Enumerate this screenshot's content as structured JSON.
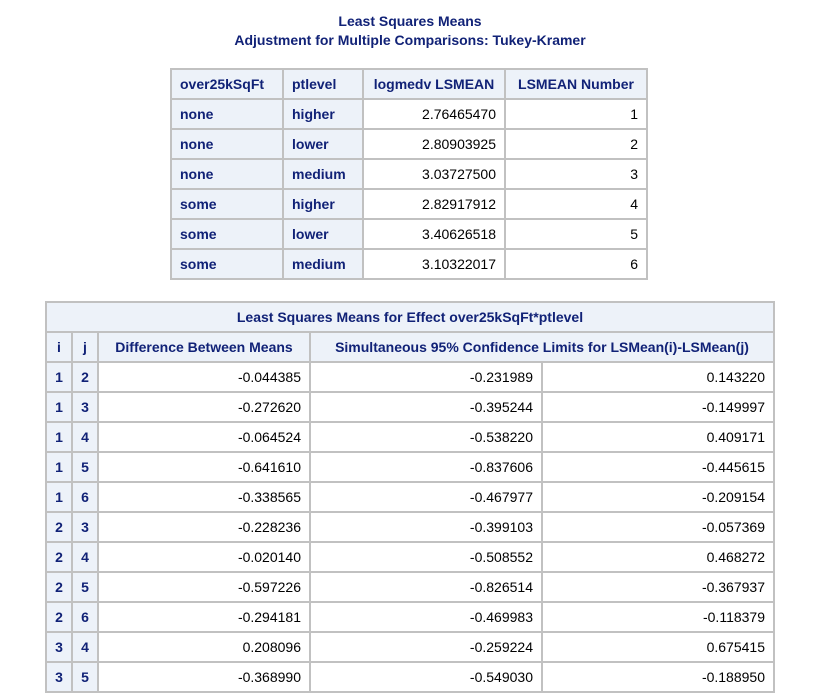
{
  "titles": {
    "line1": "Least Squares Means",
    "line2": "Adjustment for Multiple Comparisons: Tukey-Kramer"
  },
  "lsmeans": {
    "headers": [
      "over25kSqFt",
      "ptlevel",
      "logmedv LSMEAN",
      "LSMEAN Number"
    ],
    "rows": [
      {
        "over25k": "none",
        "ptlevel": "higher",
        "lsmean": "2.76465470",
        "number": "1"
      },
      {
        "over25k": "none",
        "ptlevel": "lower",
        "lsmean": "2.80903925",
        "number": "2"
      },
      {
        "over25k": "none",
        "ptlevel": "medium",
        "lsmean": "3.03727500",
        "number": "3"
      },
      {
        "over25k": "some",
        "ptlevel": "higher",
        "lsmean": "2.82917912",
        "number": "4"
      },
      {
        "over25k": "some",
        "ptlevel": "lower",
        "lsmean": "3.40626518",
        "number": "5"
      },
      {
        "over25k": "some",
        "ptlevel": "medium",
        "lsmean": "3.10322017",
        "number": "6"
      }
    ]
  },
  "differences": {
    "caption": "Least Squares Means for Effect over25kSqFt*ptlevel",
    "headers": {
      "i": "i",
      "j": "j",
      "diff": "Difference Between Means",
      "limits": "Simultaneous 95% Confidence Limits for LSMean(i)-LSMean(j)"
    },
    "rows": [
      {
        "i": "1",
        "j": "2",
        "diff": "-0.044385",
        "lower": "-0.231989",
        "upper": "0.143220"
      },
      {
        "i": "1",
        "j": "3",
        "diff": "-0.272620",
        "lower": "-0.395244",
        "upper": "-0.149997"
      },
      {
        "i": "1",
        "j": "4",
        "diff": "-0.064524",
        "lower": "-0.538220",
        "upper": "0.409171"
      },
      {
        "i": "1",
        "j": "5",
        "diff": "-0.641610",
        "lower": "-0.837606",
        "upper": "-0.445615"
      },
      {
        "i": "1",
        "j": "6",
        "diff": "-0.338565",
        "lower": "-0.467977",
        "upper": "-0.209154"
      },
      {
        "i": "2",
        "j": "3",
        "diff": "-0.228236",
        "lower": "-0.399103",
        "upper": "-0.057369"
      },
      {
        "i": "2",
        "j": "4",
        "diff": "-0.020140",
        "lower": "-0.508552",
        "upper": "0.468272"
      },
      {
        "i": "2",
        "j": "5",
        "diff": "-0.597226",
        "lower": "-0.826514",
        "upper": "-0.367937"
      },
      {
        "i": "2",
        "j": "6",
        "diff": "-0.294181",
        "lower": "-0.469983",
        "upper": "-0.118379"
      },
      {
        "i": "3",
        "j": "4",
        "diff": "0.208096",
        "lower": "-0.259224",
        "upper": "0.675415"
      },
      {
        "i": "3",
        "j": "5",
        "diff": "-0.368990",
        "lower": "-0.549030",
        "upper": "-0.188950"
      }
    ]
  }
}
